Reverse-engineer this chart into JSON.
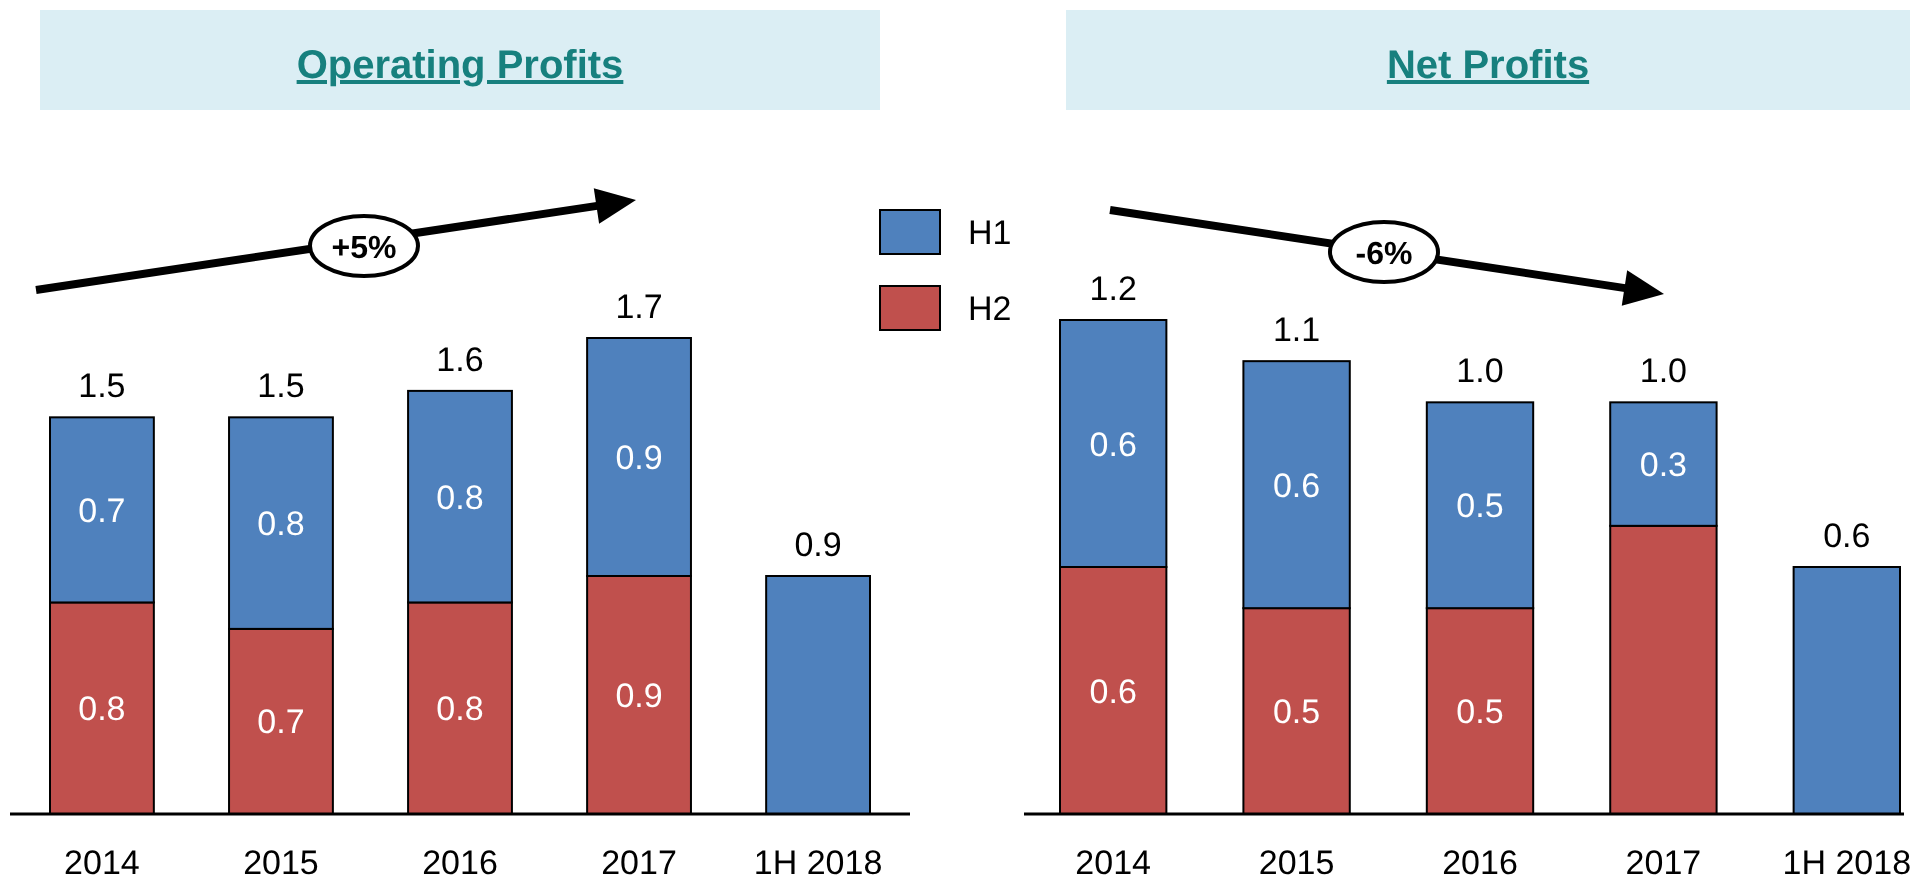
{
  "chart_data": [
    {
      "type": "bar",
      "title": "Operating Profits",
      "stacked": true,
      "data_labels": false,
      "legend": "right",
      "categories": [
        "2014",
        "2015",
        "2016",
        "2017",
        "1H 2018"
      ],
      "series": [
        {
          "name": "H2",
          "color": "#c0504d",
          "values": [
            0.8,
            0.7,
            0.8,
            0.9,
            null
          ],
          "value_labels": [
            "0.8",
            "0.7",
            "0.8",
            "0.9",
            null
          ]
        },
        {
          "name": "H1",
          "color": "#4f81bd",
          "values": [
            0.7,
            0.8,
            0.8,
            0.9,
            0.9
          ],
          "value_labels": [
            "0.7",
            "0.8",
            "0.8",
            "0.9",
            null
          ]
        }
      ],
      "totals": [
        "1.5",
        "1.5",
        "1.6",
        "1.7",
        "0.9"
      ],
      "annotations": [
        "+5%"
      ]
    },
    {
      "type": "bar",
      "title": "Net Profits",
      "stacked": true,
      "data_labels": false,
      "legend": false,
      "categories": [
        "2014",
        "2015",
        "2016",
        "2017",
        "1H 2018"
      ],
      "series": [
        {
          "color": "#c0504d",
          "values": [
            0.6,
            0.5,
            0.5,
            0.7,
            null
          ],
          "value_labels": [
            "0.6",
            "0.5",
            "0.5",
            null,
            null
          ]
        },
        {
          "color": "#4f81bd",
          "values": [
            0.6,
            0.6,
            0.5,
            0.3,
            0.6
          ],
          "value_labels": [
            "0.6",
            "0.6",
            "0.5",
            "0.3",
            null
          ]
        }
      ],
      "totals": [
        "1.2",
        "1.1",
        "1.0",
        "1.0",
        "0.6"
      ],
      "annotations": [
        "-6%"
      ]
    }
  ]
}
